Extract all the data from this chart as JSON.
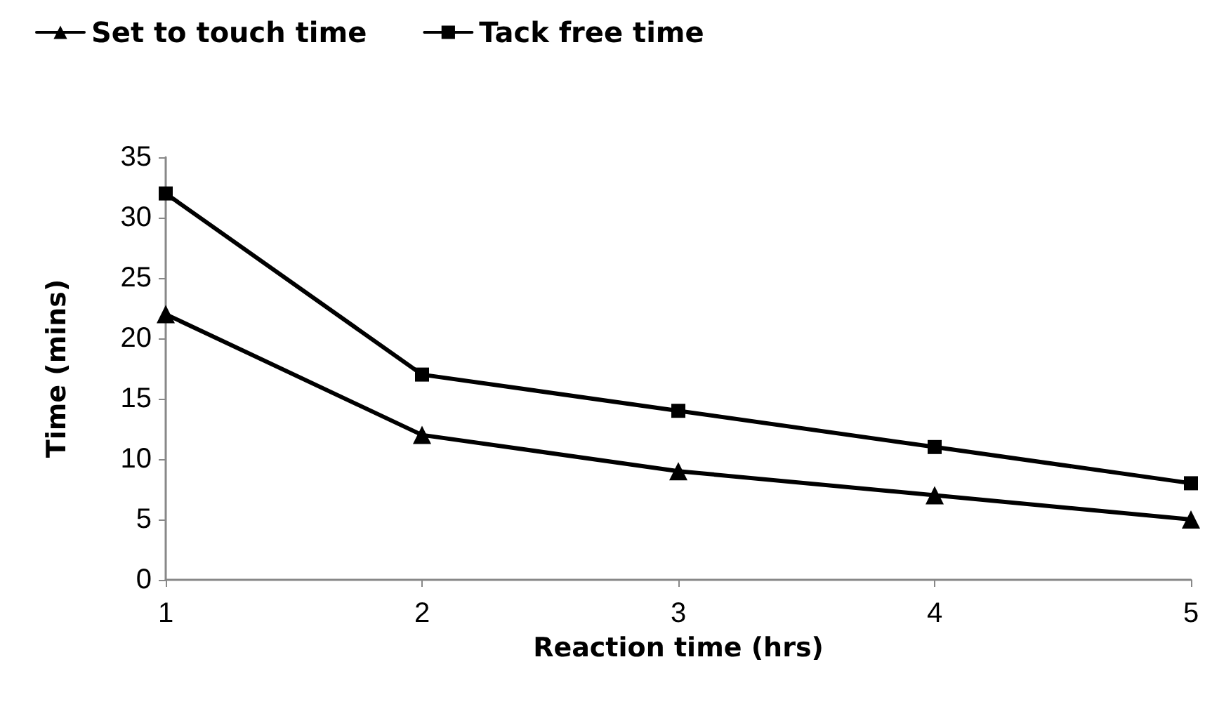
{
  "chart_data": {
    "type": "line",
    "xlabel": "Reaction time (hrs)",
    "ylabel": "Time (mins)",
    "x": [
      1,
      2,
      3,
      4,
      5
    ],
    "series": [
      {
        "name": "Set to touch time",
        "color": "#000000",
        "marker": "triangle",
        "values": [
          22,
          12,
          9,
          7,
          5
        ]
      },
      {
        "name": "Tack free time",
        "color": "#000000",
        "marker": "square",
        "values": [
          32,
          17,
          14,
          11,
          8
        ]
      }
    ],
    "xlim": [
      1,
      5
    ],
    "xticks": [
      1,
      2,
      3,
      4,
      5
    ],
    "ylim": [
      0,
      35
    ],
    "yticks": [
      0,
      5,
      10,
      15,
      20,
      25,
      30,
      35
    ],
    "grid": false,
    "legend": "top left",
    "line_style": "solid"
  }
}
